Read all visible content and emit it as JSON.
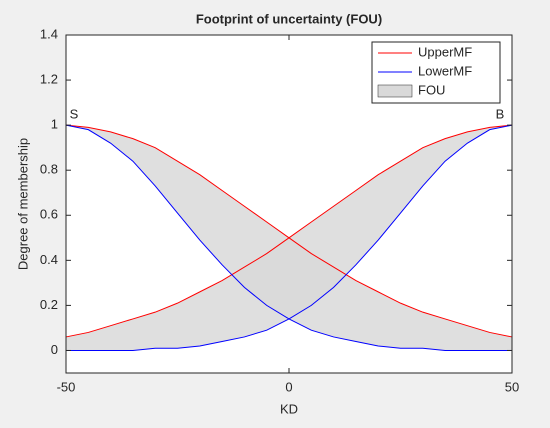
{
  "chart_data": {
    "type": "line",
    "title": "Footprint of uncertainty (FOU)",
    "xlabel": "KD",
    "ylabel": "Degree of membership",
    "x": [
      -50,
      -45,
      -40,
      -35,
      -30,
      -25,
      -20,
      -15,
      -10,
      -5,
      0,
      5,
      10,
      15,
      20,
      25,
      30,
      35,
      40,
      45,
      50
    ],
    "series": [
      {
        "name": "UpperMF",
        "color": "#ff0000",
        "values": [
          [
            1,
            0.99,
            0.97,
            0.94,
            0.9,
            0.84,
            0.78,
            0.71,
            0.64,
            0.57,
            0.5,
            0.43,
            0.37,
            0.31,
            0.26,
            0.21,
            0.17,
            0.14,
            0.11,
            0.08,
            0.06
          ],
          [
            0.06,
            0.08,
            0.11,
            0.14,
            0.17,
            0.21,
            0.26,
            0.31,
            0.37,
            0.43,
            0.5,
            0.57,
            0.64,
            0.71,
            0.78,
            0.84,
            0.9,
            0.94,
            0.97,
            0.99,
            1
          ]
        ]
      },
      {
        "name": "LowerMF",
        "color": "#0000ff",
        "values": [
          [
            1,
            0.98,
            0.92,
            0.84,
            0.73,
            0.61,
            0.49,
            0.38,
            0.28,
            0.2,
            0.14,
            0.09,
            0.06,
            0.04,
            0.02,
            0.01,
            0.01,
            0,
            0,
            0,
            0
          ],
          [
            0,
            0,
            0,
            0,
            0.01,
            0.01,
            0.02,
            0.04,
            0.06,
            0.09,
            0.14,
            0.2,
            0.28,
            0.38,
            0.49,
            0.61,
            0.73,
            0.84,
            0.92,
            0.98,
            1
          ]
        ]
      }
    ],
    "fou": {
      "name": "FOU",
      "color": "#d9d9d9"
    },
    "annotations": [
      "S",
      "B"
    ],
    "xlim": [
      -50,
      50
    ],
    "xticks": [
      -50,
      0,
      50
    ],
    "ylim": [
      -0.1,
      1.4
    ],
    "yticks": [
      0,
      0.2,
      0.4,
      0.6,
      0.8,
      1,
      1.2,
      1.4
    ],
    "grid": false,
    "legend": "top-right"
  }
}
